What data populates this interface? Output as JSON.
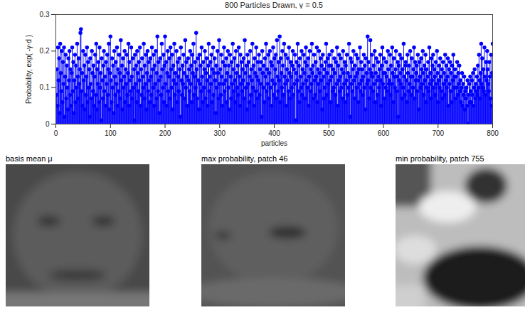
{
  "chart_data": {
    "type": "stem",
    "title": "800 Particles Drawn, γ = 0.5",
    "xlabel": "particles",
    "ylabel": "Probability, exp( -γ·d )",
    "xlim": [
      0,
      800
    ],
    "xticks": [
      0,
      100,
      200,
      300,
      400,
      500,
      600,
      700,
      800
    ],
    "ylim": [
      0,
      0.3
    ],
    "yticks": [
      0,
      0.1,
      0.2,
      0.3
    ],
    "color": "#0000ff",
    "marker": "o",
    "grid": false,
    "values": [
      0.08,
      0.15,
      0.05,
      0.21,
      0.12,
      0.18,
      0.03,
      0.22,
      0.14,
      0.09,
      0.2,
      0.06,
      0.17,
      0.11,
      0.21,
      0.02,
      0.13,
      0.19,
      0.07,
      0.16,
      0.1,
      0.04,
      0.18,
      0.12,
      0.2,
      0.08,
      0.15,
      0.05,
      0.14,
      0.21,
      0.09,
      0.17,
      0.03,
      0.12,
      0.19,
      0.06,
      0.16,
      0.1,
      0.22,
      0.13,
      0.07,
      0.18,
      0.11,
      0.15,
      0.25,
      0.26,
      0.09,
      0.14,
      0.05,
      0.2,
      0.12,
      0.16,
      0.04,
      0.19,
      0.08,
      0.13,
      0.21,
      0.06,
      0.17,
      0.1,
      0.15,
      0.02,
      0.18,
      0.11,
      0.07,
      0.2,
      0.14,
      0.09,
      0.16,
      0.05,
      0.13,
      0.19,
      0.08,
      0.22,
      0.04,
      0.15,
      0.11,
      0.17,
      0.06,
      0.21,
      0.1,
      0.14,
      0.01,
      0.18,
      0.12,
      0.07,
      0.16,
      0.2,
      0.09,
      0.13,
      0.05,
      0.17,
      0.11,
      0.19,
      0.08,
      0.15,
      0.22,
      0.04,
      0.14,
      0.24,
      0.12,
      0.06,
      0.18,
      0.1,
      0.16,
      0.03,
      0.2,
      0.13,
      0.08,
      0.17,
      0.11,
      0.21,
      0.05,
      0.15,
      0.09,
      0.19,
      0.14,
      0.07,
      0.23,
      0.12,
      0.16,
      0.04,
      0.18,
      0.1,
      0.13,
      0.2,
      0.06,
      0.15,
      0.11,
      0.19,
      0.08,
      0.14,
      0.22,
      0.05,
      0.17,
      0.12,
      0.09,
      0.21,
      0.13,
      0.07,
      0.18,
      0.1,
      0.15,
      0.01,
      0.19,
      0.11,
      0.16,
      0.06,
      0.2,
      0.14,
      0.09,
      0.17,
      0.12,
      0.21,
      0.05,
      0.15,
      0.08,
      0.18,
      0.13,
      0.1,
      0.22,
      0.07,
      0.16,
      0.11,
      0.19,
      0.04,
      0.14,
      0.2,
      0.09,
      0.17,
      0.12,
      0.06,
      0.18,
      0.13,
      0.08,
      0.21,
      0.15,
      0.1,
      0.19,
      0.05,
      0.16,
      0.11,
      0.2,
      0.07,
      0.14,
      0.24,
      0.09,
      0.17,
      0.12,
      0.03,
      0.18,
      0.13,
      0.08,
      0.22,
      0.15,
      0.1,
      0.19,
      0.06,
      0.16,
      0.24,
      0.11,
      0.17,
      0.05,
      0.14,
      0.2,
      0.09,
      0.13,
      0.18,
      0.07,
      0.21,
      0.15,
      0.1,
      0.19,
      0.04,
      0.16,
      0.12,
      0.22,
      0.08,
      0.14,
      0.11,
      0.2,
      0.06,
      0.17,
      0.13,
      0.09,
      0.18,
      0.15,
      0.02,
      0.21,
      0.12,
      0.08,
      0.16,
      0.11,
      0.19,
      0.14,
      0.07,
      0.23,
      0.1,
      0.17,
      0.13,
      0.05,
      0.18,
      0.12,
      0.15,
      0.09,
      0.2,
      0.11,
      0.16,
      0.06,
      0.19,
      0.14,
      0.22,
      0.08,
      0.13,
      0.17,
      0.1,
      0.25,
      0.15,
      0.07,
      0.18,
      0.12,
      0.04,
      0.19,
      0.11,
      0.16,
      0.09,
      0.21,
      0.13,
      0.06,
      0.17,
      0.1,
      0.15,
      0.2,
      0.07,
      0.14,
      0.18,
      0.12,
      0.05,
      0.16,
      0.22,
      0.09,
      0.13,
      0.17,
      0.11,
      0.19,
      0.06,
      0.15,
      0.21,
      0.08,
      0.14,
      0.18,
      0.12,
      0.03,
      0.16,
      0.1,
      0.2,
      0.14,
      0.07,
      0.23,
      0.11,
      0.15,
      0.08,
      0.19,
      0.13,
      0.05,
      0.17,
      0.11,
      0.21,
      0.09,
      0.16,
      0.12,
      0.18,
      0.06,
      0.14,
      0.2,
      0.1,
      0.16,
      0.04,
      0.19,
      0.13,
      0.07,
      0.17,
      0.11,
      0.22,
      0.15,
      0.09,
      0.18,
      0.12,
      0.06,
      0.2,
      0.14,
      0.1,
      0.16,
      0.08,
      0.21,
      0.13,
      0.05,
      0.19,
      0.11,
      0.17,
      0.09,
      0.15,
      0.12,
      0.18,
      0.07,
      0.23,
      0.14,
      0.1,
      0.16,
      0.04,
      0.19,
      0.11,
      0.17,
      0.06,
      0.13,
      0.2,
      0.08,
      0.15,
      0.12,
      0.22,
      0.1,
      0.16,
      0.05,
      0.18,
      0.14,
      0.09,
      0.21,
      0.13,
      0.07,
      0.17,
      0.12,
      0.19,
      0.08,
      0.15,
      0.11,
      0.17,
      0.02,
      0.2,
      0.14,
      0.1,
      0.16,
      0.06,
      0.18,
      0.13,
      0.22,
      0.09,
      0.15,
      0.11,
      0.19,
      0.07,
      0.14,
      0.2,
      0.1,
      0.17,
      0.05,
      0.16,
      0.12,
      0.21,
      0.08,
      0.18,
      0.11,
      0.15,
      0.19,
      0.07,
      0.23,
      0.13,
      0.09,
      0.17,
      0.12,
      0.24,
      0.06,
      0.18,
      0.14,
      0.1,
      0.2,
      0.16,
      0.08,
      0.22,
      0.13,
      0.11,
      0.19,
      0.05,
      0.15,
      0.12,
      0.18,
      0.09,
      0.21,
      0.14,
      0.07,
      0.17,
      0.13,
      0.1,
      0.16,
      0.2,
      0.08,
      0.15,
      0.11,
      0.19,
      0.01,
      0.14,
      0.17,
      0.12,
      0.22,
      0.09,
      0.16,
      0.06,
      0.18,
      0.13,
      0.1,
      0.2,
      0.08,
      0.15,
      0.11,
      0.19,
      0.14,
      0.07,
      0.17,
      0.21,
      0.12,
      0.16,
      0.1,
      0.18,
      0.05,
      0.13,
      0.2,
      0.09,
      0.15,
      0.11,
      0.22,
      0.14,
      0.16,
      0.07,
      0.19,
      0.12,
      0.08,
      0.17,
      0.13,
      0.21,
      0.06,
      0.15,
      0.11,
      0.2,
      0.14,
      0.09,
      0.18,
      0.12,
      0.16,
      0.04,
      0.19,
      0.13,
      0.07,
      0.15,
      0.1,
      0.17,
      0.22,
      0.08,
      0.14,
      0.18,
      0.11,
      0.16,
      0.19,
      0.12,
      0.06,
      0.16,
      0.13,
      0.2,
      0.09,
      0.15,
      0.1,
      0.18,
      0.14,
      0.08,
      0.17,
      0.11,
      0.21,
      0.05,
      0.16,
      0.12,
      0.19,
      0.09,
      0.13,
      0.18,
      0.1,
      0.15,
      0.07,
      0.2,
      0.14,
      0.11,
      0.17,
      0.06,
      0.16,
      0.12,
      0.19,
      0.08,
      0.14,
      0.1,
      0.22,
      0.13,
      0.02,
      0.18,
      0.11,
      0.17,
      0.09,
      0.15,
      0.2,
      0.12,
      0.07,
      0.16,
      0.13,
      0.19,
      0.1,
      0.14,
      0.18,
      0.06,
      0.15,
      0.11,
      0.21,
      0.09,
      0.17,
      0.12,
      0.15,
      0.08,
      0.13,
      0.19,
      0.1,
      0.16,
      0.04,
      0.18,
      0.14,
      0.11,
      0.24,
      0.12,
      0.17,
      0.07,
      0.15,
      0.23,
      0.1,
      0.14,
      0.19,
      0.13,
      0.09,
      0.16,
      0.11,
      0.2,
      0.06,
      0.14,
      0.18,
      0.12,
      0.08,
      0.17,
      0.13,
      0.1,
      0.15,
      0.19,
      0.12,
      0.05,
      0.16,
      0.21,
      0.11,
      0.14,
      0.18,
      0.07,
      0.14,
      0.1,
      0.17,
      0.13,
      0.09,
      0.2,
      0.15,
      0.11,
      0.12,
      0.19,
      0.08,
      0.16,
      0.11,
      0.21,
      0.14,
      0.06,
      0.18,
      0.13,
      0.1,
      0.15,
      0.2,
      0.09,
      0.13,
      0.17,
      0.02,
      0.16,
      0.12,
      0.19,
      0.14,
      0.11,
      0.18,
      0.07,
      0.15,
      0.1,
      0.22,
      0.13,
      0.08,
      0.16,
      0.17,
      0.12,
      0.06,
      0.19,
      0.14,
      0.09,
      0.16,
      0.11,
      0.2,
      0.13,
      0.08,
      0.18,
      0.13,
      0.1,
      0.15,
      0.21,
      0.07,
      0.17,
      0.12,
      0.14,
      0.16,
      0.09,
      0.19,
      0.12,
      0.04,
      0.17,
      0.13,
      0.1,
      0.18,
      0.15,
      0.11,
      0.2,
      0.14,
      0.08,
      0.16,
      0.12,
      0.19,
      0.06,
      0.15,
      0.1,
      0.13,
      0.17,
      0.09,
      0.21,
      0.11,
      0.14,
      0.07,
      0.18,
      0.12,
      0.16,
      0.19,
      0.1,
      0.15,
      0.13,
      0.08,
      0.17,
      0.11,
      0.2,
      0.14,
      0.06,
      0.12,
      0.16,
      0.1,
      0.18,
      0.13,
      0.09,
      0.15,
      0.07,
      0.17,
      0.11,
      0.14,
      0.08,
      0.19,
      0.12,
      0.16,
      0.1,
      0.13,
      0.18,
      0.05,
      0.15,
      0.11,
      0.17,
      0.09,
      0.14,
      0.06,
      0.16,
      0.12,
      0.19,
      0.1,
      0.13,
      0.15,
      0.07,
      0.13,
      0.1,
      0.17,
      0.08,
      0.14,
      0.11,
      0.16,
      0.09,
      0.12,
      0.06,
      0.1,
      0.14,
      0.05,
      0.11,
      0.08,
      0.13,
      0.04,
      0.09,
      0.07,
      0.1,
      0.05,
      0.12,
      0.001,
      0.08,
      0.11,
      0.06,
      0.13,
      0.09,
      0.06,
      0.12,
      0.08,
      0.14,
      0.05,
      0.1,
      0.15,
      0.07,
      0.11,
      0.09,
      0.13,
      0.08,
      0.16,
      0.1,
      0.19,
      0.12,
      0.07,
      0.14,
      0.22,
      0.11,
      0.18,
      0.1,
      0.15,
      0.09,
      0.21,
      0.13,
      0.08,
      0.17,
      0.12,
      0.2,
      0.15,
      0.11,
      0.09,
      0.17,
      0.13,
      0.07,
      0.19,
      0.05,
      0.14,
      0.22
    ],
    "images": [
      {
        "title": "basis mean μ"
      },
      {
        "title": "max probability, patch 46"
      },
      {
        "title": "min probability, patch 755"
      }
    ]
  }
}
